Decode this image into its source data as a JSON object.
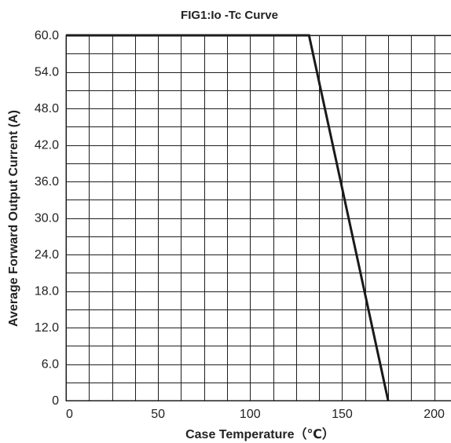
{
  "chart_data": {
    "type": "line",
    "title": "FIG1:Io -Tc Curve",
    "xlabel": "Case Temperature（℃）",
    "ylabel": "Average Forward Output Current (A)",
    "xlim": [
      0,
      210
    ],
    "ylim": [
      0,
      60
    ],
    "x_ticks": [
      0,
      50,
      100,
      150,
      200
    ],
    "x_tick_labels": [
      "0",
      "50",
      "100",
      "150",
      "200"
    ],
    "y_ticks": [
      0,
      6,
      12,
      18,
      24,
      30,
      36,
      42,
      48,
      54,
      60
    ],
    "y_tick_labels": [
      "0",
      "6.0",
      "12.0",
      "18.0",
      "24.0",
      "30.0",
      "36.0",
      "42.0",
      "48.0",
      "54.0",
      "60.0"
    ],
    "x_grid_step": 12.5,
    "y_grid_step": 3,
    "grid": true,
    "legend": false,
    "series": [
      {
        "x": [
          0,
          132,
          175
        ],
        "y": [
          60,
          60,
          0
        ],
        "color": "#1a1a1a"
      }
    ]
  }
}
